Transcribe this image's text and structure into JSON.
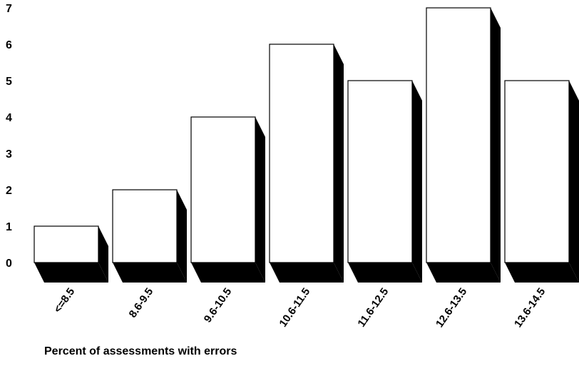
{
  "chart_data": {
    "type": "bar",
    "style": "3d",
    "categories": [
      "<=8.5",
      "8.6-9.5",
      "9.6-10.5",
      "10.6-11.5",
      "11.6-12.5",
      "12.6-13.5",
      "13.6-14.5"
    ],
    "values": [
      1,
      2,
      4,
      6,
      5,
      7,
      5
    ],
    "ylim": [
      0,
      7
    ],
    "yticks": [
      "0",
      "1",
      "2",
      "3",
      "4",
      "5",
      "6",
      "7"
    ],
    "xlabel": "Percent of assessments with errors",
    "ylabel": "",
    "title": "",
    "grid": false,
    "bar_fill": "#ffffff",
    "shadow_color": "#000000"
  }
}
